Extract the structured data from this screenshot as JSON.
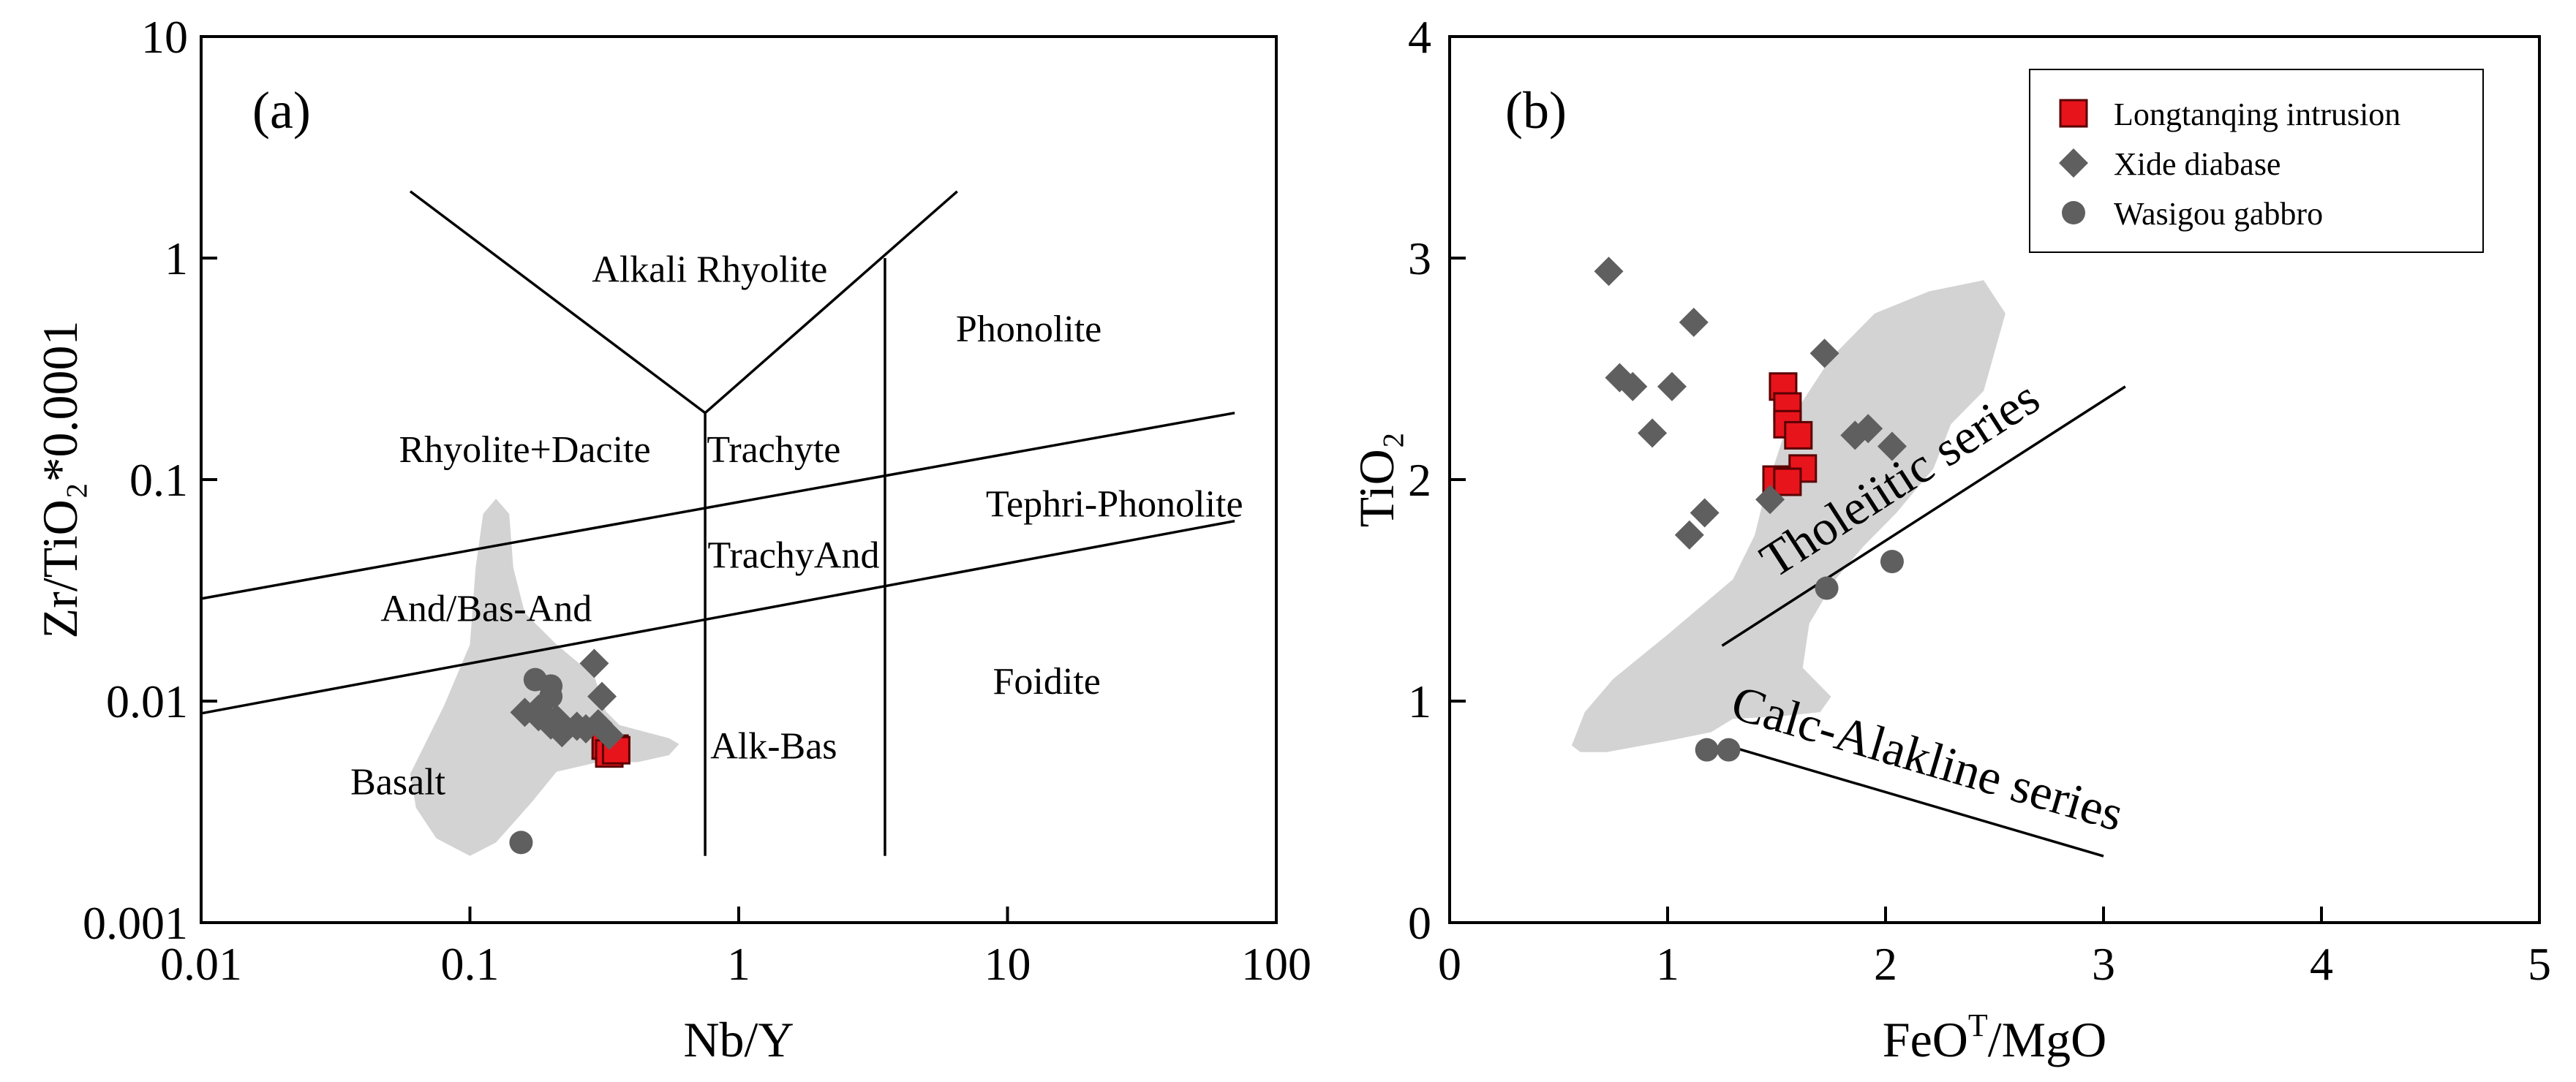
{
  "colors": {
    "field": "#d3d3d3",
    "longtanqing": "#e8141c",
    "longtanqing_edge": "#5a0000",
    "gray_marker": "#5f5f5f"
  },
  "chart_data": [
    {
      "type": "scatter",
      "panel_label": "(a)",
      "xlabel": "Nb/Y",
      "ylabel": "Zr/TiO₂*0.0001",
      "xscale": "log",
      "yscale": "log",
      "xlim": [
        0.01,
        100
      ],
      "ylim": [
        0.001,
        10
      ],
      "xtick_values": [
        0.01,
        0.1,
        1,
        10,
        100
      ],
      "xtick_labels": [
        "0.01",
        "0.1",
        "1",
        "10",
        "100"
      ],
      "ytick_values": [
        0.001,
        0.01,
        0.1,
        1,
        10
      ],
      "ytick_labels": [
        "0.001",
        "0.01",
        "0.1",
        "1",
        "10"
      ],
      "field_polygon": [
        [
          0.125,
          0.082
        ],
        [
          0.14,
          0.07
        ],
        [
          0.145,
          0.04
        ],
        [
          0.16,
          0.025
        ],
        [
          0.21,
          0.018
        ],
        [
          0.29,
          0.013
        ],
        [
          0.32,
          0.009
        ],
        [
          0.36,
          0.0078
        ],
        [
          0.55,
          0.0068
        ],
        [
          0.6,
          0.0064
        ],
        [
          0.55,
          0.0057
        ],
        [
          0.42,
          0.0053
        ],
        [
          0.3,
          0.0053
        ],
        [
          0.21,
          0.0048
        ],
        [
          0.17,
          0.0035
        ],
        [
          0.125,
          0.0023
        ],
        [
          0.1,
          0.002
        ],
        [
          0.075,
          0.0024
        ],
        [
          0.063,
          0.0033
        ],
        [
          0.06,
          0.0047
        ],
        [
          0.08,
          0.0095
        ],
        [
          0.1,
          0.018
        ],
        [
          0.105,
          0.04
        ],
        [
          0.112,
          0.07
        ]
      ],
      "boundary_lines": [
        [
          [
            0.06,
            2.0
          ],
          [
            0.75,
            0.2
          ]
        ],
        [
          [
            0.75,
            0.2
          ],
          [
            6.5,
            2.0
          ]
        ],
        [
          [
            0.75,
            0.2
          ],
          [
            0.75,
            0.002
          ]
        ],
        [
          [
            3.5,
            1.0
          ],
          [
            3.5,
            0.002
          ]
        ],
        [
          [
            0.01,
            0.029
          ],
          [
            70,
            0.2
          ]
        ],
        [
          [
            0.01,
            0.0088
          ],
          [
            70,
            0.065
          ]
        ]
      ],
      "field_labels": [
        {
          "text": "Alkali Rhyolite",
          "x": 0.78,
          "y": 0.78
        },
        {
          "text": "Phonolite",
          "x": 12,
          "y": 0.42
        },
        {
          "text": "Rhyolite+Dacite",
          "x": 0.16,
          "y": 0.12
        },
        {
          "text": "Trachyte",
          "x": 1.35,
          "y": 0.12
        },
        {
          "text": "Tephri-Phonolite",
          "x": 25,
          "y": 0.068
        },
        {
          "text": "TrachyAnd",
          "x": 1.6,
          "y": 0.04
        },
        {
          "text": "And/Bas-And",
          "x": 0.115,
          "y": 0.023
        },
        {
          "text": "Foidite",
          "x": 14,
          "y": 0.0108
        },
        {
          "text": "Alk-Bas",
          "x": 1.35,
          "y": 0.0055
        },
        {
          "text": "Basalt",
          "x": 0.054,
          "y": 0.0038
        }
      ],
      "series": [
        {
          "name": "Longtanqing intrusion",
          "marker": "square",
          "x": [
            0.32,
            0.345,
            0.33,
            0.35
          ],
          "y": [
            0.0063,
            0.0061,
            0.0058,
            0.006
          ]
        },
        {
          "name": "Xide diabase",
          "marker": "diamond",
          "x": [
            0.16,
            0.18,
            0.2,
            0.22,
            0.25,
            0.27,
            0.3,
            0.33,
            0.21,
            0.29,
            0.31,
            0.18
          ],
          "y": [
            0.0089,
            0.0085,
            0.0078,
            0.0072,
            0.0077,
            0.0075,
            0.0079,
            0.007,
            0.0083,
            0.0148,
            0.0105,
            0.0092
          ]
        },
        {
          "name": "Wasigou gabbro",
          "marker": "circle",
          "x": [
            0.175,
            0.2,
            0.2,
            0.155
          ],
          "y": [
            0.0125,
            0.0117,
            0.0105,
            0.0023
          ]
        }
      ]
    },
    {
      "type": "scatter",
      "panel_label": "(b)",
      "xlabel": "FeO",
      "xlabel_sup": "T",
      "xlabel_suffix": "/MgO",
      "ylabel": "TiO₂",
      "xlim": [
        0,
        5
      ],
      "ylim": [
        0,
        4
      ],
      "xticks": [
        0,
        1,
        2,
        3,
        4,
        5
      ],
      "yticks": [
        0,
        1,
        2,
        3,
        4
      ],
      "field_polygon": [
        [
          0.56,
          0.8
        ],
        [
          0.62,
          0.95
        ],
        [
          0.75,
          1.1
        ],
        [
          1.0,
          1.3
        ],
        [
          1.3,
          1.55
        ],
        [
          1.4,
          1.75
        ],
        [
          1.45,
          1.95
        ],
        [
          1.55,
          2.25
        ],
        [
          1.75,
          2.55
        ],
        [
          1.95,
          2.75
        ],
        [
          2.2,
          2.85
        ],
        [
          2.45,
          2.9
        ],
        [
          2.55,
          2.75
        ],
        [
          2.45,
          2.4
        ],
        [
          2.3,
          2.25
        ],
        [
          2.22,
          2.05
        ],
        [
          2.05,
          1.85
        ],
        [
          1.9,
          1.7
        ],
        [
          1.77,
          1.55
        ],
        [
          1.65,
          1.35
        ],
        [
          1.62,
          1.15
        ],
        [
          1.75,
          1.02
        ],
        [
          1.7,
          0.95
        ],
        [
          1.5,
          0.93
        ],
        [
          1.3,
          0.92
        ],
        [
          1.2,
          0.86
        ],
        [
          1.0,
          0.82
        ],
        [
          0.72,
          0.77
        ],
        [
          0.6,
          0.77
        ]
      ],
      "trend_lines": [
        {
          "label": "Tholeiitic series",
          "from": [
            1.25,
            1.25
          ],
          "to": [
            3.1,
            2.42
          ]
        },
        {
          "label": "Calc-Alakline series",
          "from": [
            1.27,
            0.8
          ],
          "to": [
            3.0,
            0.3
          ]
        }
      ],
      "series": [
        {
          "name": "Longtanqing intrusion",
          "marker": "square",
          "x": [
            1.53,
            1.55,
            1.55,
            1.6,
            1.62,
            1.5,
            1.55
          ],
          "y": [
            2.42,
            2.33,
            2.25,
            2.2,
            2.05,
            2.0,
            1.99
          ]
        },
        {
          "name": "Xide diabase",
          "marker": "diamond",
          "x": [
            0.73,
            0.78,
            0.84,
            1.12,
            1.72,
            0.93,
            1.02,
            1.86,
            1.92,
            2.03,
            1.1,
            1.17,
            1.47
          ],
          "y": [
            2.94,
            2.46,
            2.42,
            2.71,
            2.57,
            2.21,
            2.42,
            2.2,
            2.23,
            2.15,
            1.75,
            1.85,
            1.91
          ]
        },
        {
          "name": "Wasigou gabbro",
          "marker": "circle",
          "x": [
            1.73,
            2.03,
            1.18,
            1.28
          ],
          "y": [
            1.51,
            1.63,
            0.78,
            0.78
          ]
        }
      ],
      "legend": {
        "placement": "top-right",
        "items": [
          "Longtanqing intrusion",
          "Xide diabase",
          "Wasigou gabbro"
        ]
      }
    }
  ]
}
